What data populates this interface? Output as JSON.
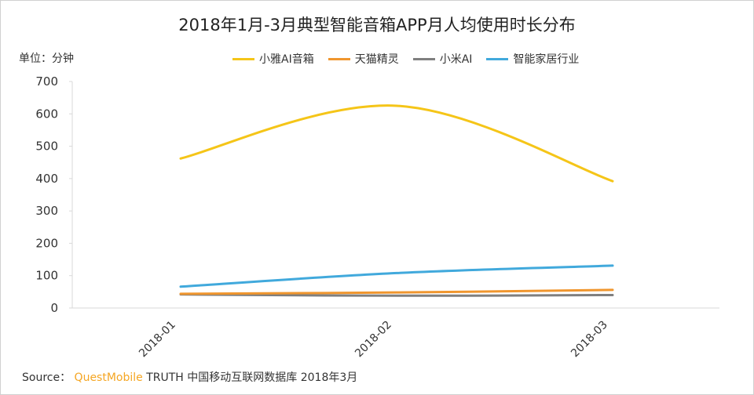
{
  "chart_data": {
    "type": "line",
    "title": "2018年1月-3月典型智能音箱APP月人均使用时长分布",
    "ylabel": "单位：分钟",
    "xlabel": "",
    "categories": [
      "2018-01",
      "2018-02",
      "2018-03"
    ],
    "ylim": [
      0,
      700
    ],
    "yticks": [
      0,
      100,
      200,
      300,
      400,
      500,
      600,
      700
    ],
    "grid": false,
    "legend_position": "top",
    "series": [
      {
        "name": "小雅AI音箱",
        "color": "#f5c518",
        "values": [
          462,
          625,
          392
        ]
      },
      {
        "name": "天猫精灵",
        "color": "#f0962e",
        "values": [
          44,
          48,
          56
        ]
      },
      {
        "name": "小米AI",
        "color": "#7f7f7f",
        "values": [
          42,
          38,
          40
        ]
      },
      {
        "name": "智能家居行业",
        "color": "#41a9dc",
        "values": [
          66,
          108,
          131
        ]
      }
    ]
  },
  "source": {
    "label": "Source：",
    "brand": "QuestMobile",
    "text": "TRUTH 中国移动互联网数据库 2018年3月"
  }
}
